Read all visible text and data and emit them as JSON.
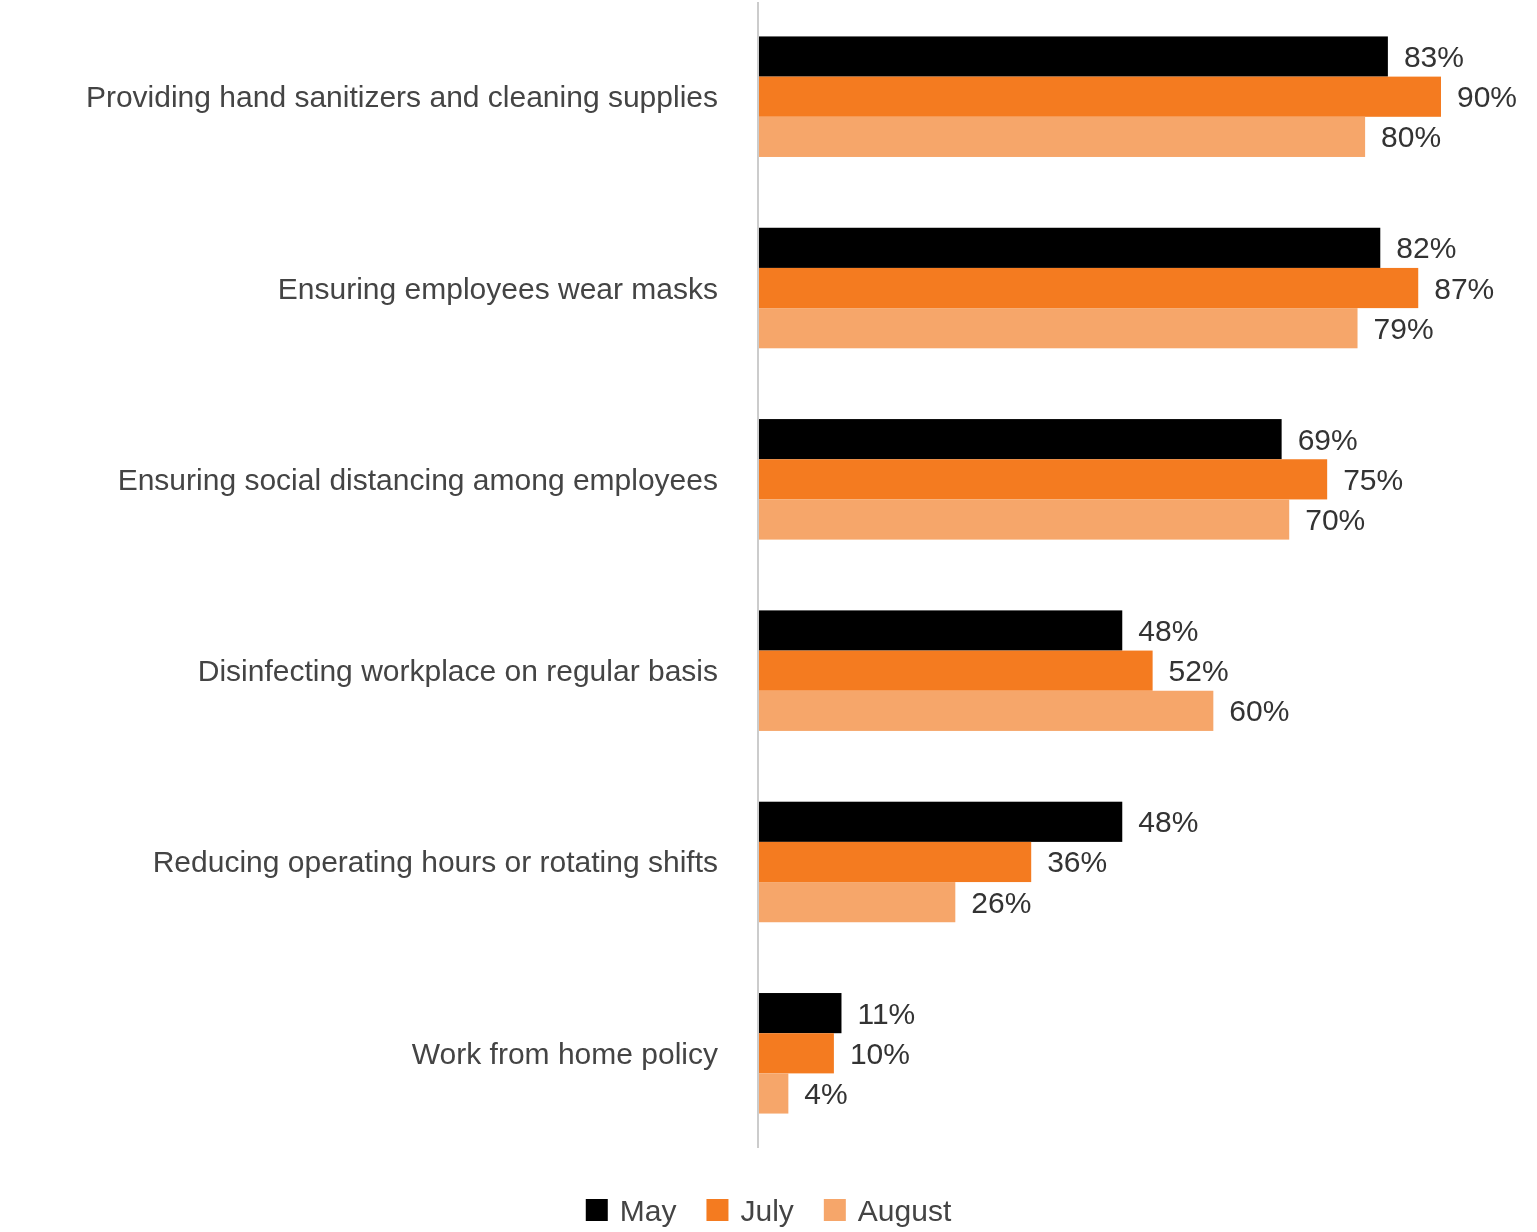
{
  "chart_data": {
    "type": "bar",
    "orientation": "horizontal",
    "categories": [
      "Providing hand sanitizers and cleaning supplies",
      "Ensuring employees wear masks",
      "Ensuring social distancing among employees",
      "Disinfecting workplace on regular basis",
      "Reducing operating hours or rotating shifts",
      "Work from home policy"
    ],
    "series": [
      {
        "name": "May",
        "color": "#000000",
        "values": [
          83,
          82,
          69,
          48,
          48,
          11
        ],
        "value_labels": [
          "83%",
          "82%",
          "69%",
          "48%",
          "48%",
          "11%"
        ]
      },
      {
        "name": "July",
        "color": "#f47b20",
        "values": [
          90,
          87,
          75,
          52,
          36,
          10
        ],
        "value_labels": [
          "90%",
          "87%",
          "75%",
          "52%",
          "36%",
          "10%"
        ]
      },
      {
        "name": "August",
        "color": "#f6a66a",
        "values": [
          80,
          79,
          70,
          60,
          26,
          4
        ],
        "value_labels": [
          "80%",
          "79%",
          "70%",
          "60%",
          "26%",
          "4%"
        ]
      }
    ],
    "legend": "bottom",
    "grid": false,
    "tick_labels": "y"
  }
}
